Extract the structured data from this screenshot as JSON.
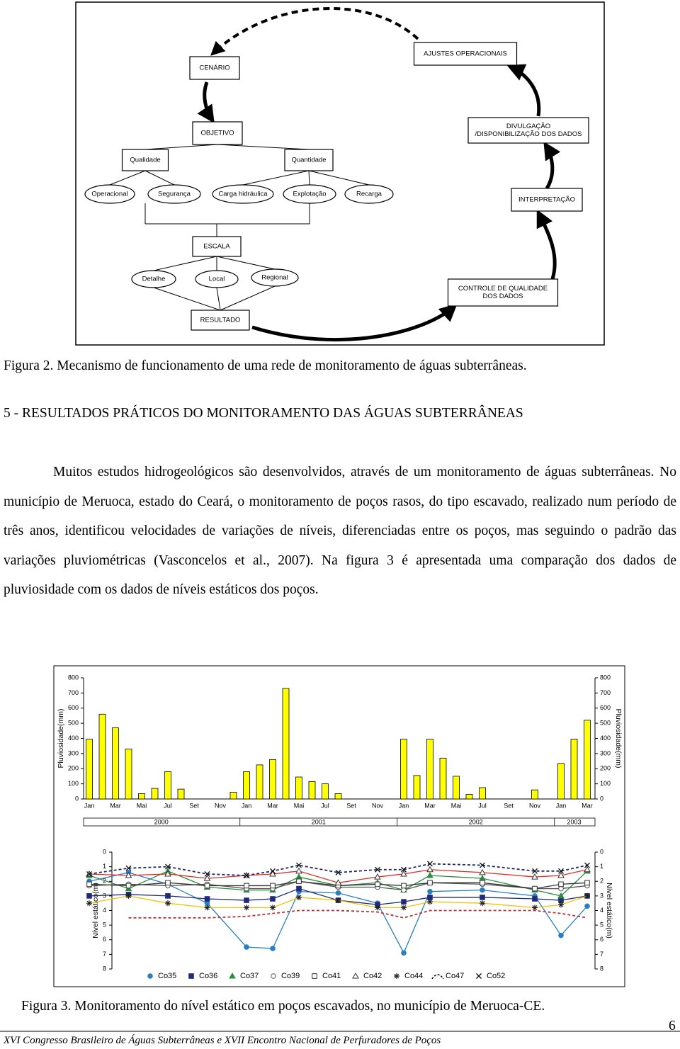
{
  "figure2": {
    "nodes": [
      {
        "lines": [
          "CENÁRIO"
        ]
      },
      {
        "lines": [
          "AJUSTES OPERACIONAIS"
        ]
      },
      {
        "lines": [
          "OBJETIVO"
        ]
      },
      {
        "lines": [
          "DIVULGAÇÃO",
          "/DISPONIBILIZAÇÃO DOS DADOS"
        ]
      },
      {
        "lines": [
          "Qualidade"
        ]
      },
      {
        "lines": [
          "Quantidade"
        ]
      },
      {
        "lines": [
          "Operacional"
        ]
      },
      {
        "lines": [
          "Segurança"
        ]
      },
      {
        "lines": [
          "Carga hidráulica"
        ]
      },
      {
        "lines": [
          "Explotação"
        ]
      },
      {
        "lines": [
          "Recarga"
        ]
      },
      {
        "lines": [
          "INTERPRETAÇÃO"
        ]
      },
      {
        "lines": [
          "ESCALA"
        ]
      },
      {
        "lines": [
          "Detalhe"
        ]
      },
      {
        "lines": [
          "Local"
        ]
      },
      {
        "lines": [
          "Regional"
        ]
      },
      {
        "lines": [
          "CONTROLE DE QUALIDADE",
          "DOS DADOS"
        ]
      },
      {
        "lines": [
          "RESULTADO"
        ]
      }
    ],
    "caption": "Figura 2. Mecanismo de funcionamento de uma rede de monitoramento de águas subterrâneas."
  },
  "section": {
    "heading": "5 - RESULTADOS PRÁTICOS DO MONITORAMENTO DAS ÁGUAS SUBTERRÂNEAS",
    "paragraph": "Muitos estudos hidrogeológicos são desenvolvidos, através de um monitoramento de águas subterrâneas. No município de Meruoca, estado do Ceará, o monitoramento de poços rasos, do tipo escavado, realizado num período de três anos, identificou velocidades de variações de níveis, diferenciadas entre os poços, mas seguindo o padrão das variações pluviométricas (Vasconcelos et al., 2007). Na figura 3 é apresentada uma comparação dos dados de pluviosidade com os dados de níveis estáticos dos poços."
  },
  "chart_data": [
    {
      "type": "bar",
      "ylabel": "Pluviosidade(mm)",
      "y2label": "Pluviosidade(mm)",
      "color": "#ffff00",
      "categories": [
        "Jan",
        null,
        "Mar",
        null,
        "Mai",
        null,
        "Jul",
        null,
        "Set",
        null,
        "Nov",
        null,
        "Jan",
        null,
        "Mar",
        null,
        "Mai",
        null,
        "Jul",
        null,
        "Set",
        null,
        "Nov",
        null,
        "Jan",
        null,
        "Mar",
        null,
        "Mai",
        null,
        "Jul",
        null,
        "Set",
        null,
        "Nov",
        null,
        "Jan",
        null,
        "Mar"
      ],
      "values": [
        395,
        560,
        470,
        330,
        35,
        70,
        180,
        65,
        0,
        0,
        0,
        45,
        180,
        225,
        260,
        730,
        145,
        115,
        100,
        35,
        0,
        0,
        0,
        0,
        395,
        155,
        395,
        270,
        150,
        30,
        75,
        0,
        0,
        0,
        60,
        0,
        235,
        395,
        520
      ],
      "years": [
        2000,
        2001,
        2002,
        2003
      ],
      "ylim": [
        0,
        800
      ],
      "yticks": [
        0,
        100,
        200,
        300,
        400,
        500,
        600,
        700,
        800
      ],
      "y2lim": [
        0,
        800
      ],
      "y2ticks": [
        0,
        100,
        200,
        300,
        400,
        500,
        600,
        700,
        800
      ]
    },
    {
      "type": "line",
      "ylabel": "Nível estático(m)",
      "y2label": "Nível estático(m)",
      "inverted": true,
      "x": [
        0,
        3,
        6,
        9,
        12,
        14,
        16,
        19,
        22,
        24,
        26,
        30,
        34,
        36,
        38
      ],
      "xlim": [
        0,
        38
      ],
      "ylim": [
        0,
        8
      ],
      "yticks": [
        0,
        1,
        2,
        3,
        4,
        5,
        6,
        7,
        8
      ],
      "y2lim": [
        0,
        8
      ],
      "y2ticks": [
        0,
        1,
        2,
        3,
        4,
        5,
        6,
        7,
        8
      ],
      "series": [
        {
          "name": "Co35",
          "color": "#2a7fc1",
          "marker": "circle-filled",
          "dashed": false,
          "values": [
            2.0,
            1.4,
            2.2,
            3.5,
            6.5,
            6.6,
            2.7,
            2.8,
            3.5,
            6.9,
            2.7,
            2.6,
            3.0,
            5.7,
            3.7
          ]
        },
        {
          "name": "Co36",
          "color": "#1f2a7a",
          "marker": "square-filled",
          "dashed": false,
          "values": [
            3.0,
            2.9,
            3.0,
            3.2,
            3.3,
            3.2,
            2.5,
            3.3,
            3.6,
            3.4,
            3.1,
            3.1,
            3.2,
            3.3,
            3.0
          ]
        },
        {
          "name": "Co37",
          "color": "#2e8b3e",
          "marker": "triangle-filled",
          "dashed": false,
          "values": [
            1.6,
            2.5,
            1.3,
            2.4,
            2.6,
            2.6,
            1.7,
            2.3,
            2.1,
            2.6,
            1.6,
            1.8,
            2.6,
            3.0,
            1.3
          ]
        },
        {
          "name": "Co39",
          "color": "#555555",
          "marker": "circle-open",
          "dashed": false,
          "values": [
            2.3,
            2.2,
            2.3,
            2.2,
            2.5,
            2.5,
            2.0,
            2.4,
            2.4,
            2.6,
            2.1,
            2.2,
            2.5,
            2.5,
            2.3
          ]
        },
        {
          "name": "Co41",
          "color": "#333333",
          "marker": "square-open",
          "dashed": false,
          "values": [
            2.2,
            2.3,
            2.1,
            2.3,
            2.3,
            2.3,
            2.0,
            2.3,
            2.2,
            2.3,
            2.1,
            2.1,
            2.5,
            2.2,
            2.1
          ]
        },
        {
          "name": "Co42",
          "color": "#d9312b",
          "marker": "triangle-open",
          "dashed": false,
          "values": [
            1.5,
            1.6,
            1.5,
            1.8,
            1.6,
            1.5,
            1.3,
            2.1,
            1.7,
            1.5,
            1.2,
            1.4,
            1.7,
            1.6,
            1.2
          ]
        },
        {
          "name": "Co44",
          "color": "#f2c200",
          "marker": "asterisk",
          "dashed": false,
          "values": [
            3.5,
            3.0,
            3.5,
            3.8,
            3.8,
            3.8,
            3.1,
            3.3,
            3.8,
            3.8,
            3.4,
            3.5,
            3.8,
            3.6,
            3.0
          ]
        },
        {
          "name": "Co47",
          "color": "#b8323c",
          "marker": "none",
          "dashed": true,
          "values": [
            null,
            4.5,
            4.5,
            4.5,
            4.4,
            4.2,
            4.0,
            4.0,
            4.1,
            4.5,
            4.0,
            4.0,
            4.0,
            4.2,
            4.5
          ]
        },
        {
          "name": "Co52",
          "color": "#1c2a6b",
          "marker": "x",
          "dashed": true,
          "values": [
            1.5,
            1.1,
            1.0,
            1.5,
            1.6,
            1.3,
            0.9,
            1.4,
            1.2,
            1.2,
            0.8,
            0.9,
            1.3,
            1.3,
            0.9
          ]
        }
      ]
    }
  ],
  "figure3": {
    "caption": "Figura 3. Monitoramento do nível estático em poços escavados, no município de Meruoca-CE."
  },
  "footer": {
    "page_number": 6,
    "text": "XVI Congresso Brasileiro de Águas Subterrâneas e XVII Encontro Nacional de Perfuradores de Poços"
  }
}
